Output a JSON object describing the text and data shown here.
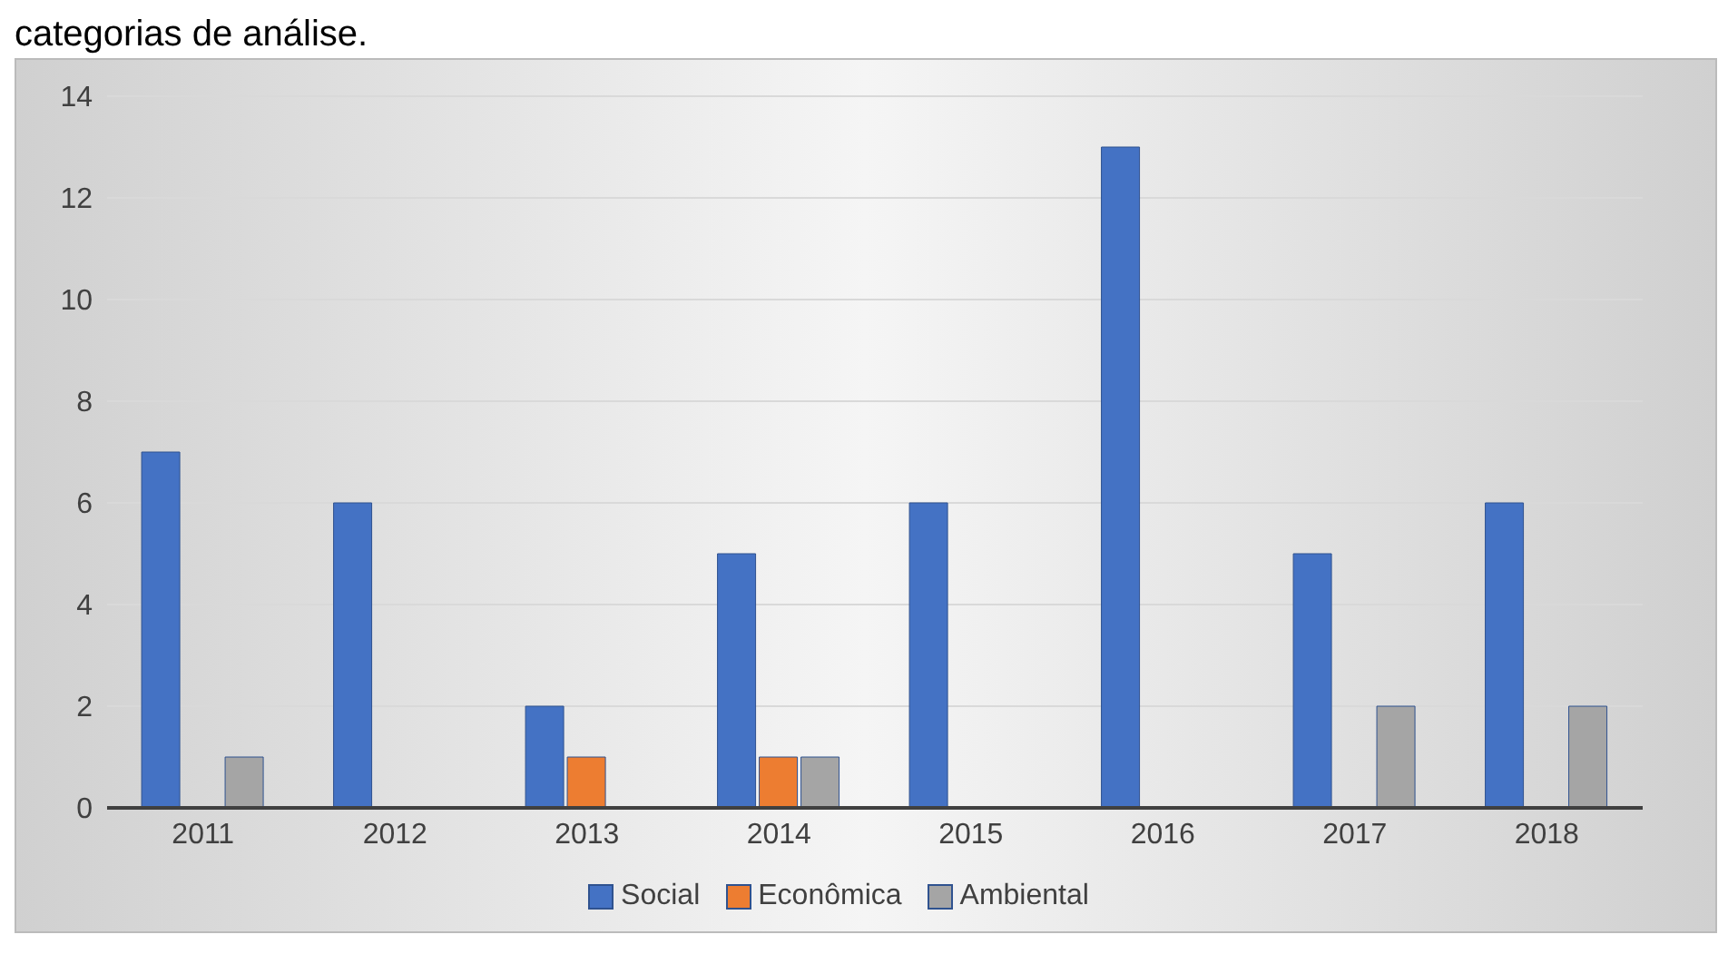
{
  "chart_data": {
    "type": "bar",
    "annotations": [
      "categorias de análise."
    ],
    "categories": [
      "2011",
      "2012",
      "2013",
      "2014",
      "2015",
      "2016",
      "2017",
      "2018"
    ],
    "series": [
      {
        "name": "Social",
        "color": "#4472c4",
        "values": [
          7,
          6,
          2,
          5,
          6,
          13,
          5,
          6
        ]
      },
      {
        "name": "Econômica",
        "color": "#ed7d31",
        "values": [
          0,
          0,
          1,
          1,
          0,
          0,
          0,
          0
        ]
      },
      {
        "name": "Ambiental",
        "color": "#a5a5a5",
        "values": [
          1,
          0,
          0,
          1,
          0,
          0,
          2,
          2
        ]
      }
    ],
    "ylim": [
      0,
      14
    ],
    "yticks": [
      0,
      2,
      4,
      6,
      8,
      10,
      12,
      14
    ],
    "grid": "y",
    "legend": "bottom"
  }
}
